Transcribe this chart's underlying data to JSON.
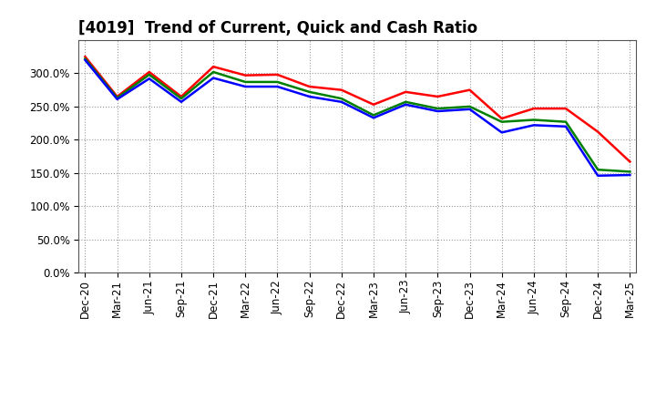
{
  "title": "[4019]  Trend of Current, Quick and Cash Ratio",
  "x_labels": [
    "Dec-20",
    "Mar-21",
    "Jun-21",
    "Sep-21",
    "Dec-21",
    "Mar-22",
    "Jun-22",
    "Sep-22",
    "Dec-22",
    "Mar-23",
    "Jun-23",
    "Sep-23",
    "Dec-23",
    "Mar-24",
    "Jun-24",
    "Sep-24",
    "Dec-24",
    "Mar-25"
  ],
  "current_ratio": [
    3.25,
    2.65,
    3.02,
    2.65,
    3.1,
    2.97,
    2.98,
    2.8,
    2.75,
    2.53,
    2.72,
    2.65,
    2.75,
    2.32,
    2.47,
    2.47,
    2.12,
    1.67
  ],
  "quick_ratio": [
    3.22,
    2.63,
    2.98,
    2.62,
    3.02,
    2.87,
    2.87,
    2.72,
    2.62,
    2.37,
    2.57,
    2.47,
    2.5,
    2.27,
    2.3,
    2.27,
    1.55,
    1.52
  ],
  "cash_ratio": [
    3.2,
    2.61,
    2.92,
    2.57,
    2.93,
    2.8,
    2.8,
    2.65,
    2.57,
    2.33,
    2.53,
    2.43,
    2.46,
    2.11,
    2.22,
    2.2,
    1.46,
    1.47
  ],
  "current_color": "#FF0000",
  "quick_color": "#008000",
  "cash_color": "#0000FF",
  "ylim": [
    0.0,
    3.5
  ],
  "yticks": [
    0.0,
    0.5,
    1.0,
    1.5,
    2.0,
    2.5,
    3.0
  ],
  "background_color": "#FFFFFF",
  "grid_color": "#999999",
  "title_fontsize": 12,
  "tick_fontsize": 8.5,
  "legend_fontsize": 9.5,
  "linewidth": 1.8
}
